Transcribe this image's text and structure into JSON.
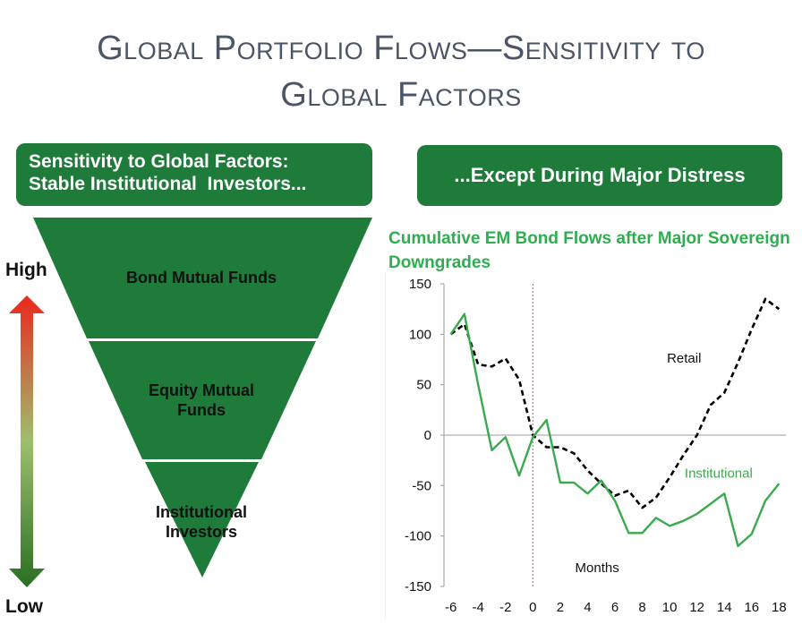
{
  "title": {
    "line1": "Global Portfolio Flows—Sensitivity to",
    "line2": "Global Factors"
  },
  "left_banner": {
    "line1": "Sensitivity to Global Factors:",
    "line2": "Stable Institutional  Investors..."
  },
  "right_banner": "...Except During Major Distress",
  "pyramid": {
    "levels": [
      {
        "label": "Bond Mutual Funds"
      },
      {
        "label": "Equity Mutual Funds"
      },
      {
        "label": "Institutional Investors"
      }
    ],
    "scale_high": "High",
    "scale_low": "Low",
    "colors": {
      "fill": "#1e7b3a",
      "arrow_top": "#e8291c",
      "arrow_mid": "#9ebf6c",
      "arrow_bottom": "#2a6e22"
    }
  },
  "chart_data": {
    "type": "line",
    "title": "Cumulative EM Bond Flows after Major Sovereign Downgrades",
    "xlabel": "Months",
    "ylabel": "",
    "x": [
      -6,
      -5,
      -4,
      -3,
      -2,
      -1,
      0,
      1,
      2,
      3,
      4,
      5,
      6,
      7,
      8,
      9,
      10,
      11,
      12,
      13,
      14,
      15,
      16,
      17,
      18
    ],
    "xticks": [
      -6,
      -4,
      -2,
      0,
      2,
      4,
      6,
      8,
      10,
      12,
      14,
      16,
      18
    ],
    "yticks": [
      -150,
      -100,
      -50,
      0,
      50,
      100,
      150
    ],
    "xlim": [
      -6.5,
      18.5
    ],
    "ylim": [
      -150,
      150
    ],
    "vline_x": 0,
    "series": [
      {
        "name": "Retail",
        "color": "#000000",
        "dash": true,
        "values": [
          100,
          110,
          70,
          68,
          76,
          55,
          0,
          -12,
          -12,
          -18,
          -35,
          -48,
          -60,
          -55,
          -72,
          -62,
          -42,
          -20,
          0,
          30,
          42,
          72,
          105,
          135,
          125
        ]
      },
      {
        "name": "Institutional",
        "color": "#3aaa4e",
        "dash": false,
        "values": [
          100,
          120,
          50,
          -15,
          -2,
          -40,
          -2,
          15,
          -47,
          -47,
          -58,
          -45,
          -65,
          -97,
          -97,
          -82,
          -90,
          -85,
          -78,
          -68,
          -58,
          -110,
          -98,
          -65,
          -48
        ]
      }
    ],
    "grid": false,
    "legend": "inline labels"
  }
}
